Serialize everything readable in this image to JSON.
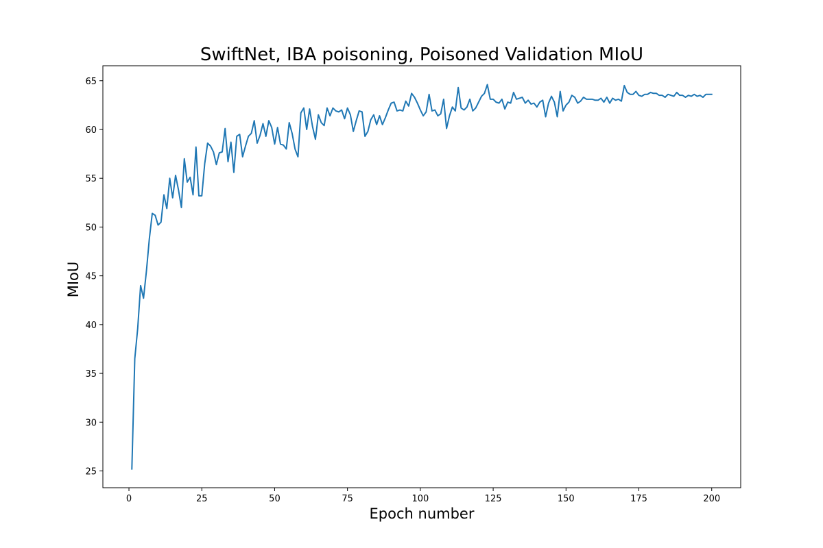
{
  "chart_data": {
    "type": "line",
    "title": "SwiftNet, IBA poisoning, Poisoned Validation MIoU",
    "xlabel": "Epoch number",
    "ylabel": "MIoU",
    "xlim": [
      -8.95,
      209.95
    ],
    "ylim": [
      23.28,
      66.53
    ],
    "xticks": [
      0,
      25,
      50,
      75,
      100,
      125,
      150,
      175,
      200
    ],
    "yticks": [
      25,
      30,
      35,
      40,
      45,
      50,
      55,
      60,
      65
    ],
    "grid": false,
    "line_color": "#1f77b4",
    "series": [
      {
        "x": [
          1,
          2,
          3,
          4,
          5,
          6,
          7,
          8,
          9,
          10,
          11,
          12,
          13,
          14,
          15,
          16,
          17,
          18,
          19,
          20,
          21,
          22,
          23,
          24,
          25,
          26,
          27,
          28,
          29,
          30,
          31,
          32,
          33,
          34,
          35,
          36,
          37,
          38,
          39,
          40,
          41,
          42,
          43,
          44,
          45,
          46,
          47,
          48,
          49,
          50,
          51,
          52,
          53,
          54,
          55,
          56,
          57,
          58,
          59,
          60,
          61,
          62,
          63,
          64,
          65,
          66,
          67,
          68,
          69,
          70,
          71,
          72,
          73,
          74,
          75,
          76,
          77,
          78,
          79,
          80,
          81,
          82,
          83,
          84,
          85,
          86,
          87,
          88,
          89,
          90,
          91,
          92,
          93,
          94,
          95,
          96,
          97,
          98,
          99,
          100,
          101,
          102,
          103,
          104,
          105,
          106,
          107,
          108,
          109,
          110,
          111,
          112,
          113,
          114,
          115,
          116,
          117,
          118,
          119,
          120,
          121,
          122,
          123,
          124,
          125,
          126,
          127,
          128,
          129,
          130,
          131,
          132,
          133,
          134,
          135,
          136,
          137,
          138,
          139,
          140,
          141,
          142,
          143,
          144,
          145,
          146,
          147,
          148,
          149,
          150,
          151,
          152,
          153,
          154,
          155,
          156,
          157,
          158,
          159,
          160,
          161,
          162,
          163,
          164,
          165,
          166,
          167,
          168,
          169,
          170,
          171,
          172,
          173,
          174,
          175,
          176,
          177,
          178,
          179,
          180,
          181,
          182,
          183,
          184,
          185,
          186,
          187,
          188,
          189,
          190,
          191,
          192,
          193,
          194,
          195,
          196,
          197,
          198,
          199,
          200
        ],
        "values": [
          25.2,
          36.5,
          39.6,
          44.0,
          42.7,
          45.5,
          48.8,
          51.4,
          51.2,
          50.2,
          50.5,
          53.3,
          51.9,
          55.0,
          53.0,
          55.3,
          53.8,
          52.0,
          57.0,
          54.6,
          55.1,
          53.3,
          58.2,
          53.2,
          53.2,
          56.5,
          58.6,
          58.3,
          57.7,
          56.4,
          57.6,
          57.7,
          60.1,
          56.7,
          58.7,
          55.6,
          59.3,
          59.5,
          57.2,
          58.3,
          59.3,
          59.6,
          60.9,
          58.6,
          59.4,
          60.6,
          59.3,
          60.9,
          60.2,
          58.5,
          60.2,
          58.5,
          58.4,
          58.0,
          60.7,
          59.6,
          58.0,
          57.2,
          61.7,
          62.2,
          60.0,
          62.1,
          60.3,
          59.0,
          61.5,
          60.7,
          60.4,
          62.2,
          61.4,
          62.2,
          61.9,
          61.8,
          62.0,
          61.1,
          62.2,
          61.5,
          59.8,
          60.9,
          61.9,
          61.8,
          59.3,
          59.8,
          61.0,
          61.5,
          60.5,
          61.4,
          60.5,
          61.2,
          62.0,
          62.7,
          62.8,
          61.9,
          62.0,
          61.9,
          62.9,
          62.4,
          63.7,
          63.3,
          62.7,
          62.0,
          61.4,
          61.8,
          63.6,
          61.9,
          62.0,
          61.4,
          61.6,
          63.1,
          60.1,
          61.4,
          62.3,
          61.9,
          64.3,
          62.2,
          62.0,
          62.3,
          63.1,
          61.9,
          62.2,
          62.8,
          63.4,
          63.7,
          64.6,
          63.1,
          63.1,
          62.8,
          62.7,
          63.1,
          62.1,
          62.8,
          62.7,
          63.8,
          63.1,
          63.2,
          63.3,
          62.7,
          63.0,
          62.6,
          62.7,
          62.3,
          62.8,
          63.0,
          61.3,
          62.7,
          63.4,
          62.8,
          61.3,
          63.9,
          61.9,
          62.5,
          62.8,
          63.5,
          63.3,
          62.7,
          62.9,
          63.3,
          63.1,
          63.1,
          63.1,
          63.0,
          63.0,
          63.2,
          62.8,
          63.3,
          62.7,
          63.2,
          63.0,
          63.1,
          62.9,
          64.5,
          63.8,
          63.6,
          63.6,
          63.9,
          63.5,
          63.4,
          63.6,
          63.6,
          63.8,
          63.7,
          63.7,
          63.5,
          63.5,
          63.3,
          63.6,
          63.5,
          63.4,
          63.8,
          63.5,
          63.5,
          63.3,
          63.5,
          63.4,
          63.6,
          63.4,
          63.5,
          63.3,
          63.6,
          63.6,
          63.6
        ]
      }
    ]
  }
}
